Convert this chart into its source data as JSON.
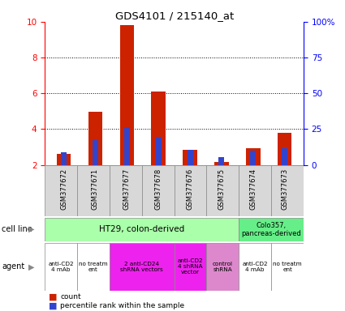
{
  "title": "GDS4101 / 215140_at",
  "samples": [
    "GSM377672",
    "GSM377671",
    "GSM377677",
    "GSM377678",
    "GSM377676",
    "GSM377675",
    "GSM377674",
    "GSM377673"
  ],
  "count_values": [
    2.6,
    4.95,
    9.8,
    6.1,
    2.85,
    2.15,
    2.95,
    3.8
  ],
  "percentile_values": [
    2.7,
    3.4,
    4.1,
    3.55,
    2.85,
    2.45,
    2.8,
    2.95
  ],
  "ylim_left": [
    2,
    10
  ],
  "ylim_right": [
    0,
    100
  ],
  "yticks_left": [
    2,
    4,
    6,
    8,
    10
  ],
  "yticks_right": [
    0,
    25,
    50,
    75,
    100
  ],
  "ytick_labels_right": [
    "0",
    "25",
    "50",
    "75",
    "100%"
  ],
  "bar_color_red": "#cc2200",
  "bar_color_blue": "#3344cc",
  "cell_line_ht29": "HT29, colon-derived",
  "cell_line_colo": "Colo357,\npancreas-derived",
  "cell_line_ht29_color": "#aaffaa",
  "cell_line_colo_color": "#66ee88",
  "label_bg_color": "#d8d8d8",
  "bar_width": 0.45,
  "percentile_bar_width": 0.18,
  "agent_data": [
    [
      0,
      1,
      "#ffffff",
      "anti-CD2\n4 mAb"
    ],
    [
      1,
      2,
      "#ffffff",
      "no treatm\nent"
    ],
    [
      2,
      4,
      "#ee22ee",
      "2 anti-CD24\nshRNA vectors"
    ],
    [
      4,
      5,
      "#ee22ee",
      "anti-CD2\n4 shRNA\nvector"
    ],
    [
      5,
      6,
      "#dd88cc",
      "control\nshRNA"
    ],
    [
      6,
      7,
      "#ffffff",
      "anti-CD2\n4 mAb"
    ],
    [
      7,
      8,
      "#ffffff",
      "no treatm\nent"
    ]
  ]
}
